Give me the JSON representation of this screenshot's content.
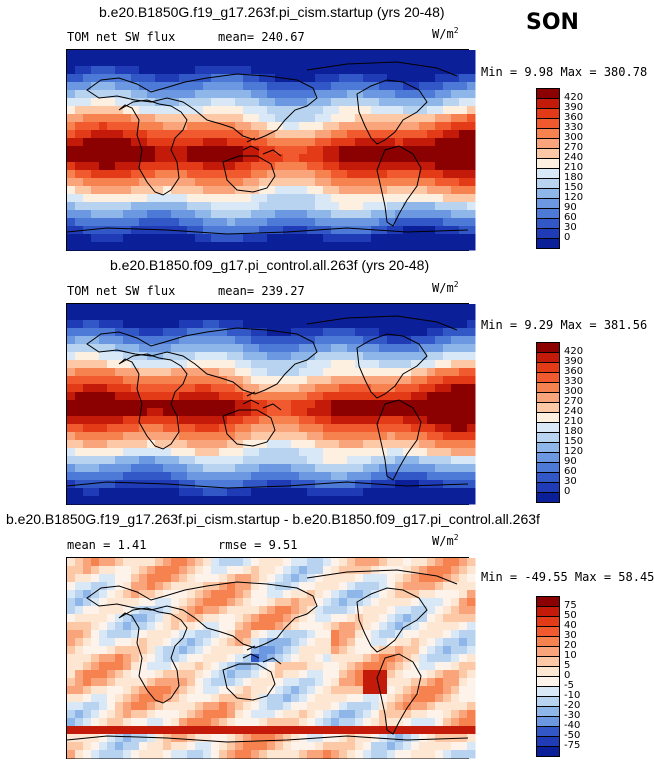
{
  "season": "SON",
  "units": {
    "base": "W/m",
    "exp": "2"
  },
  "panels": [
    {
      "title": "b.e20.B1850G.f19_g17.263f.pi_cism.startup (yrs 20-48)",
      "left_label": "TOM net SW flux",
      "center_label": "mean= 240.67",
      "minmax": "Min =   9.98 Max = 380.78",
      "colorbar": {
        "labels": [
          "420",
          "390",
          "360",
          "330",
          "300",
          "270",
          "240",
          "210",
          "180",
          "150",
          "120",
          "90",
          "60",
          "30",
          "0"
        ],
        "colors": [
          "#8b0000",
          "#c41a0a",
          "#e33a17",
          "#f05a2e",
          "#f6824f",
          "#f9a47a",
          "#fcc8a6",
          "#fdf0e0",
          "#d9e8f7",
          "#b8d3f0",
          "#8fb6e8",
          "#6b98e0",
          "#4d7ad6",
          "#3258c8",
          "#1f3bb5",
          "#0b1f99"
        ]
      },
      "palette": "abs"
    },
    {
      "title": "b.e20.B1850.f09_g17.pi_control.all.263f (yrs 20-48)",
      "left_label": "TOM net SW flux",
      "center_label": "mean= 239.27",
      "minmax": "Min =   9.29 Max = 381.56",
      "colorbar": {
        "labels": [
          "420",
          "390",
          "360",
          "330",
          "300",
          "270",
          "240",
          "210",
          "180",
          "150",
          "120",
          "90",
          "60",
          "30",
          "0"
        ],
        "colors": [
          "#8b0000",
          "#c41a0a",
          "#e33a17",
          "#f05a2e",
          "#f6824f",
          "#f9a47a",
          "#fcc8a6",
          "#fdf0e0",
          "#d9e8f7",
          "#b8d3f0",
          "#8fb6e8",
          "#6b98e0",
          "#4d7ad6",
          "#3258c8",
          "#1f3bb5",
          "#0b1f99"
        ]
      },
      "palette": "abs"
    },
    {
      "title": "b.e20.B1850G.f19_g17.263f.pi_cism.startup - b.e20.B1850.f09_g17.pi_control.all.263f",
      "left_label": "mean =   1.41",
      "center_label": "rmse =   9.51",
      "minmax": "Min = -49.55 Max =  58.45",
      "colorbar": {
        "labels": [
          "75",
          "50",
          "40",
          "30",
          "20",
          "10",
          "5",
          "0",
          "-5",
          "-10",
          "-20",
          "-30",
          "-40",
          "-50",
          "-75"
        ],
        "colors": [
          "#8b0000",
          "#c41a0a",
          "#e33a17",
          "#f05a2e",
          "#f6824f",
          "#f9a47a",
          "#fcc8a6",
          "#fde6d2",
          "#fdf3ea",
          "#d9e8f7",
          "#b8d3f0",
          "#8fb6e8",
          "#6b98e0",
          "#3258c8",
          "#1f3bb5",
          "#0b1f99"
        ]
      },
      "palette": "diff"
    }
  ]
}
